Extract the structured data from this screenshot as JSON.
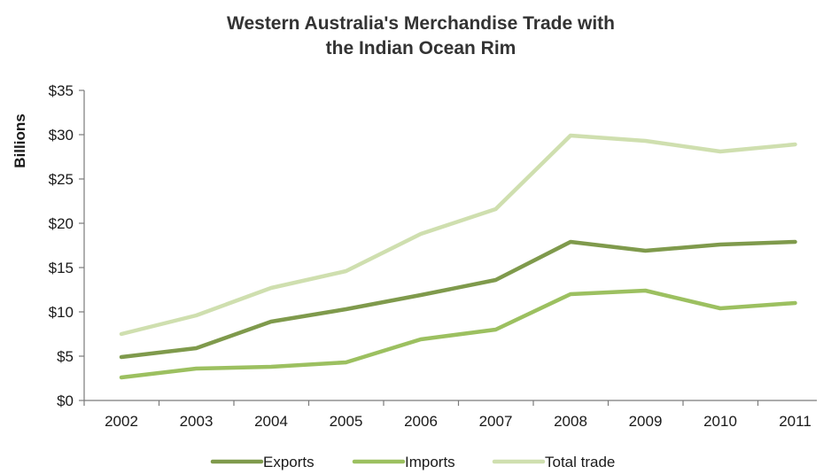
{
  "chart_data": {
    "type": "line",
    "title_lines": [
      "Western Australia's Merchandise Trade with",
      "the Indian Ocean Rim"
    ],
    "ylabel": "Billions",
    "xlabel": "",
    "categories": [
      "2002",
      "2003",
      "2004",
      "2005",
      "2006",
      "2007",
      "2008",
      "2009",
      "2010",
      "2011"
    ],
    "ylim": [
      0,
      35
    ],
    "y_ticks": [
      0,
      5,
      10,
      15,
      20,
      25,
      30,
      35
    ],
    "y_tick_labels": [
      "$0",
      "$5",
      "$10",
      "$15",
      "$20",
      "$25",
      "$30",
      "$35"
    ],
    "grid": false,
    "legend_position": "bottom",
    "series": [
      {
        "name": "Exports",
        "color": "#7f9a4c",
        "values": [
          4.9,
          5.9,
          8.9,
          10.3,
          11.9,
          13.6,
          17.9,
          16.9,
          17.6,
          17.9
        ]
      },
      {
        "name": "Imports",
        "color": "#9cc060",
        "values": [
          2.6,
          3.6,
          3.8,
          4.3,
          6.9,
          8.0,
          12.0,
          12.4,
          10.4,
          11.0
        ]
      },
      {
        "name": "Total trade",
        "color": "#cfdfaf",
        "values": [
          7.5,
          9.6,
          12.7,
          14.6,
          18.8,
          21.6,
          29.9,
          29.3,
          28.1,
          28.9
        ]
      }
    ]
  }
}
